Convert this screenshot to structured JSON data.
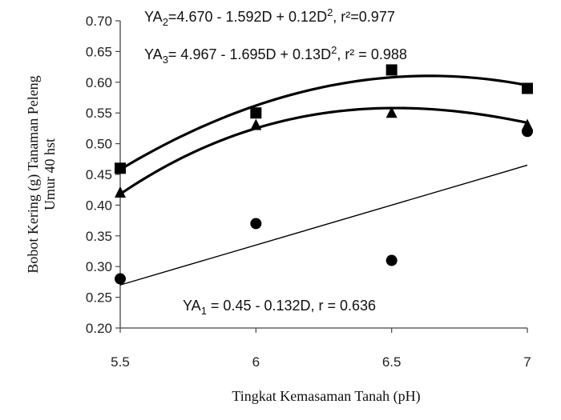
{
  "chart_data": {
    "type": "scatter",
    "xlabel": "Tingkat Kemasaman Tanah (pH)",
    "ylabel": [
      "Bobot Kering (g) Tanaman Peleng",
      "Umur 40 hst"
    ],
    "xlim": [
      5.5,
      7
    ],
    "ylim": [
      0.2,
      0.7
    ],
    "x_ticks": [
      "5.5",
      "6",
      "6.5",
      "7"
    ],
    "y_ticks": [
      "0.20",
      "0.25",
      "0.30",
      "0.35",
      "0.40",
      "0.45",
      "0.50",
      "0.55",
      "0.60",
      "0.65",
      "0.70"
    ],
    "grid": false,
    "x": [
      5.5,
      6,
      6.5,
      7
    ],
    "series": [
      {
        "marker": "circle",
        "values": [
          0.28,
          0.37,
          0.31,
          0.52
        ],
        "fit": {
          "kind": "linear",
          "from": [
            5.5,
            0.27
          ],
          "to": [
            7,
            0.465
          ]
        },
        "equation": {
          "base": "YA",
          "sub": "1",
          "rest": " = 0.45 - 0.132D, r = 0.636"
        }
      },
      {
        "marker": "square",
        "values": [
          0.46,
          0.55,
          0.62,
          0.59
        ],
        "fit": {
          "kind": "quadratic",
          "points": [
            [
              5.5,
              0.458
            ],
            [
              6,
              0.562
            ],
            [
              6.5,
              0.608
            ],
            [
              7,
              0.595
            ]
          ]
        },
        "equation": {
          "base": "YA",
          "sub": "2",
          "rest": "=4.670 - 1.592D  +  0.12D",
          "sup": "2",
          "tail": ", r²=0.977"
        }
      },
      {
        "marker": "triangle",
        "values": [
          0.42,
          0.53,
          0.55,
          0.53
        ],
        "fit": {
          "kind": "quadratic",
          "points": [
            [
              5.5,
              0.418
            ],
            [
              6,
              0.525
            ],
            [
              6.5,
              0.558
            ],
            [
              7,
              0.534
            ]
          ]
        },
        "equation": {
          "base": "YA",
          "sub": "3",
          "rest": "= 4.967  -  1.695D  + 0.13D",
          "sup": "2",
          "tail": ",  r² = 0.988"
        }
      }
    ],
    "colors": {
      "marks": "#000000",
      "axis": "#444444"
    }
  }
}
